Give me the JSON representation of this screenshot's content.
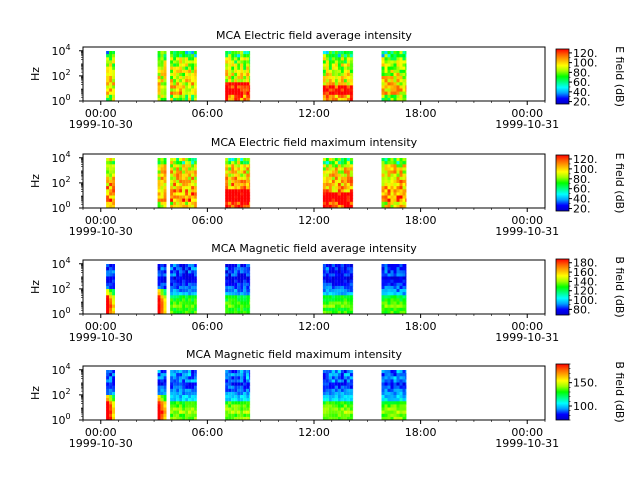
{
  "panels": [
    {
      "title": "MCA  Electric field average intensity",
      "ylabel": "Hz",
      "colorbar_label": "E field (dB)",
      "colorbar_ticks": [
        "20.",
        "40.",
        "60.",
        "80.",
        "100.",
        "120."
      ],
      "colorbar_values": [
        20,
        40,
        60,
        80,
        100,
        120
      ],
      "colorbar_range": [
        15,
        128
      ]
    },
    {
      "title": "MCA  Electric field maximum intensity",
      "ylabel": "Hz",
      "colorbar_label": "E field (dB)",
      "colorbar_ticks": [
        "20.",
        "40.",
        "60.",
        "80.",
        "100.",
        "120."
      ],
      "colorbar_values": [
        20,
        40,
        60,
        80,
        100,
        120
      ],
      "colorbar_range": [
        15,
        128
      ]
    },
    {
      "title": "MCA  Magnetic field average intensity",
      "ylabel": "Hz",
      "colorbar_label": "B field (dB)",
      "colorbar_ticks": [
        "80.",
        "100.",
        "120.",
        "140.",
        "160.",
        "180."
      ],
      "colorbar_values": [
        80,
        100,
        120,
        140,
        160,
        180
      ],
      "colorbar_range": [
        68,
        188
      ]
    },
    {
      "title": "MCA  Magnetic field maximum intensity",
      "ylabel": "Hz",
      "colorbar_label": "B field (dB)",
      "colorbar_ticks": [
        "100.",
        "150."
      ],
      "colorbar_values": [
        100,
        150
      ],
      "colorbar_range": [
        70,
        190
      ]
    }
  ],
  "x_ticks": [
    "00:00",
    "06:00",
    "12:00",
    "18:00",
    "00:00"
  ],
  "x_tick_hours": [
    0,
    6,
    12,
    18,
    24
  ],
  "date_labels": {
    "left": "1999-10-30",
    "right": "1999-10-31"
  },
  "y_ticks": [
    {
      "base": "10",
      "exp": "0"
    },
    {
      "base": "10",
      "exp": "2"
    },
    {
      "base": "10",
      "exp": "4"
    }
  ],
  "chart_data": {
    "type": "heatmap",
    "x": "time (UT), 1999-10-30 00:00 to 1999-10-31 01:00",
    "xlim_hours": [
      -1,
      25
    ],
    "ylim_log10_hz": [
      0,
      4.3
    ],
    "data_intervals_hours": [
      [
        0.3,
        0.8
      ],
      [
        3.2,
        3.7
      ],
      [
        3.9,
        5.4
      ],
      [
        7.0,
        8.4
      ],
      [
        12.5,
        14.2
      ],
      [
        15.8,
        17.2
      ]
    ],
    "spectrograms": [
      {
        "series": "Electric field average intensity",
        "unit": "dB",
        "range": [
          15,
          128
        ]
      },
      {
        "series": "Electric field maximum intensity",
        "unit": "dB",
        "range": [
          15,
          128
        ]
      },
      {
        "series": "Magnetic field average intensity",
        "unit": "dB",
        "range": [
          68,
          188
        ]
      },
      {
        "series": "Magnetic field maximum intensity",
        "unit": "dB",
        "range": [
          70,
          190
        ]
      }
    ]
  },
  "colors": {
    "rainbow": [
      "#0000c8",
      "#0000ff",
      "#00a0ff",
      "#00ffff",
      "#00ff80",
      "#00ff00",
      "#a0ff00",
      "#ffff00",
      "#ffb000",
      "#ff6000",
      "#ff0000"
    ]
  }
}
